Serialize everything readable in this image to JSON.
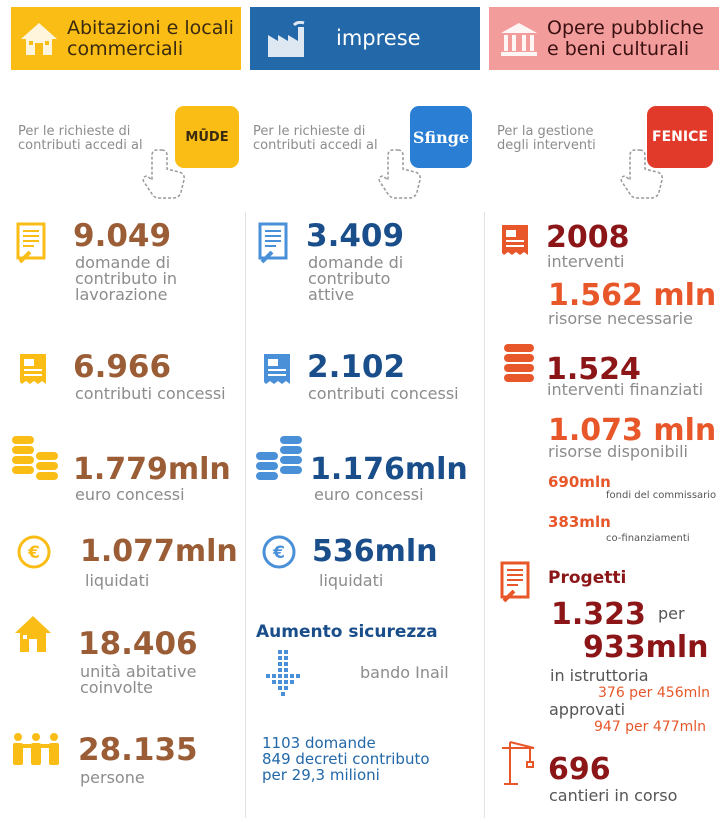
{
  "colors": {
    "yellow": "#f9bd16",
    "brown": "#9a5d36",
    "blue": "#1a4e8a",
    "header_blue": "#2368a8",
    "light_blue": "#4a90d9",
    "pink": "#f39c9c",
    "red": "#8b1517",
    "orange": "#e8572a",
    "gray": "#8c8c8c"
  },
  "headers": {
    "abitazioni": "Abitazioni e locali commerciali",
    "imprese": "imprese",
    "opere": "Opere pubbliche e beni culturali"
  },
  "access": {
    "mude_text": "Per le richieste di contributi accedi al",
    "mude_logo": "MŪDE",
    "sfinge_text": "Per le richieste di contributi accedi al",
    "sfinge_logo": "Sfinge",
    "fenice_text": "Per la gestione degli interventi",
    "fenice_logo": "FENICE"
  },
  "abitazioni": {
    "domande_value": "9.049",
    "domande_label": "domande di contributo in lavorazione",
    "concessi_value": "6.966",
    "concessi_label": "contributi concessi",
    "euro_value": "1.779mln",
    "euro_label": "euro concessi",
    "liquidati_value": "1.077mln",
    "liquidati_label": "liquidati",
    "unita_value": "18.406",
    "unita_label": "unità abitative coinvolte",
    "persone_value": "28.135",
    "persone_label": "persone"
  },
  "imprese": {
    "domande_value": "3.409",
    "domande_label": "domande di contributo attive",
    "concessi_value": "2.102",
    "concessi_label": "contributi concessi",
    "euro_value": "1.176mln",
    "euro_label": "euro concessi",
    "liquidati_value": "536mln",
    "liquidati_label": "liquidati",
    "sicurezza_title": "Aumento sicurezza",
    "bando_label": "bando Inail",
    "inail_line1": "1103 domande",
    "inail_line2": "849 decreti contributo",
    "inail_line3": "per 29,3 milioni"
  },
  "opere": {
    "interventi_value": "2008",
    "interventi_label": "interventi",
    "risorse_value": "1.562 mln",
    "risorse_label": "risorse necessarie",
    "finanziati_value": "1.524",
    "finanziati_label": "interventi finanziati",
    "disponibili_value": "1.073 mln",
    "disponibili_label": "risorse disponibili",
    "commissario_value": "690mln",
    "commissario_label": "fondi del commissario",
    "cofin_value": "383mln",
    "cofin_label": "co-finanziamenti",
    "progetti_title": "Progetti",
    "progetti_value": "1.323",
    "per_label": "per",
    "progetti_amount": "933mln",
    "istruttoria_label": "in istruttoria",
    "istruttoria_detail": "376 per 456mln",
    "approvati_label": "approvati",
    "approvati_detail": "947 per 477mln",
    "cantieri_value": "696",
    "cantieri_label": "cantieri in corso"
  }
}
